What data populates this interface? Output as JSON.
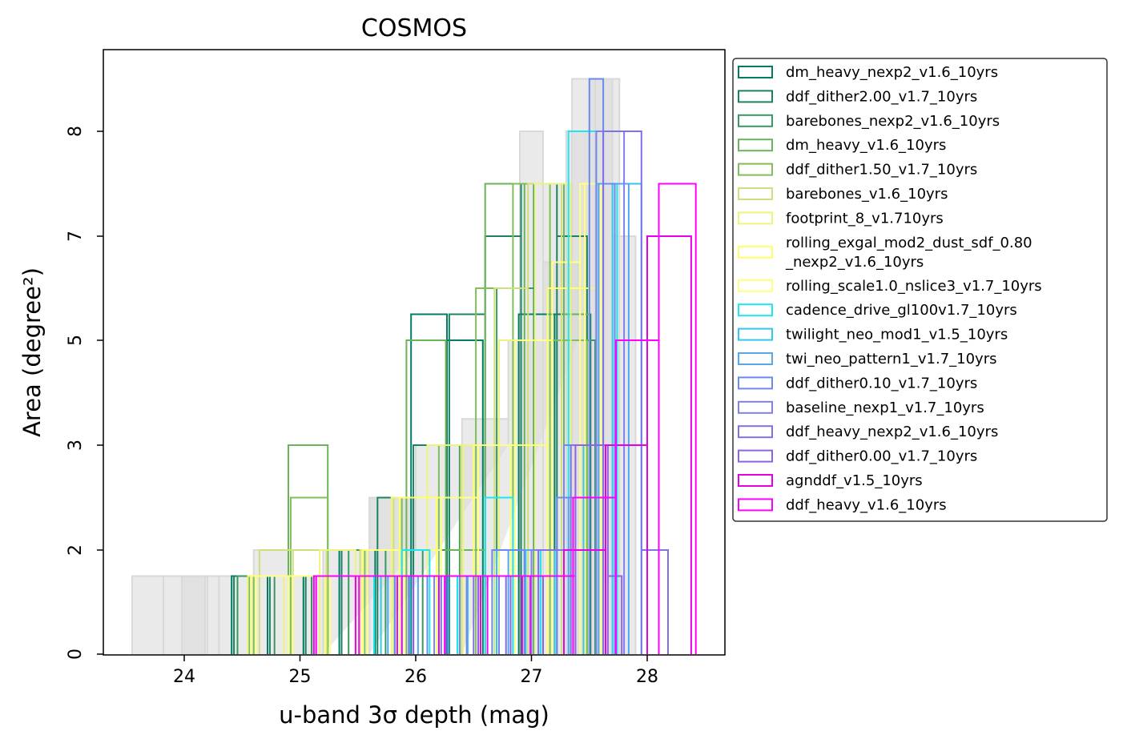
{
  "chart_data": {
    "type": "histogram",
    "title": "COSMOS",
    "xlabel": "u-band 3σ depth (mag)",
    "ylabel": "Area (degree²)",
    "xlim": [
      23.3,
      28.66
    ],
    "ylim": [
      0,
      8.8
    ],
    "x_ticks": [
      24,
      25,
      26,
      27,
      28
    ],
    "y_ticks": [
      0,
      2,
      3,
      5,
      7,
      8
    ],
    "grid": false,
    "legend_position": "outside-right",
    "background_series": {
      "color": "#d9d9d9",
      "steps": [
        {
          "edges": [
            23.55,
            23.82,
            24.18
          ],
          "values": [
            1.5,
            1.5
          ]
        },
        {
          "edges": [
            23.98,
            24.2,
            24.3
          ],
          "values": [
            1.5,
            1.5
          ]
        },
        {
          "edges": [
            24.3,
            24.6,
            24.9,
            25.2
          ],
          "values": [
            1.5,
            2.0,
            1.5
          ]
        },
        {
          "edges": [
            25.2,
            25.6,
            26.0
          ],
          "values": [
            2.0,
            2.5,
            2.0
          ]
        },
        {
          "edges": [
            25.6,
            26.0,
            26.4,
            26.8
          ],
          "values": [
            2.5,
            3.0,
            3.5,
            3.0
          ]
        },
        {
          "edges": [
            26.4,
            26.8,
            27.1,
            27.4
          ],
          "values": [
            3.0,
            5.0,
            6.5,
            5.0
          ]
        },
        {
          "edges": [
            26.9,
            27.1,
            27.3,
            27.5,
            27.7,
            27.9
          ],
          "values": [
            8.0,
            7.5,
            8.0,
            8.5,
            7.0
          ]
        },
        {
          "edges": [
            27.35,
            27.55,
            27.76
          ],
          "values": [
            8.5,
            8.5
          ]
        }
      ]
    },
    "series": [
      {
        "name": "dm_heavy_nexp2_v1.6_10yrs",
        "color": "#007d63",
        "edges": [
          24.41,
          24.72,
          25.03,
          25.34,
          25.65,
          25.96,
          26.27,
          26.58,
          26.89,
          27.2,
          27.51
        ],
        "values": [
          1.5,
          1.5,
          1.5,
          2.0,
          2.0,
          5.5,
          5.0,
          1.5,
          5.5,
          5.5
        ]
      },
      {
        "name": "ddf_dither2.00_v1.7_10yrs",
        "color": "#1a8263",
        "edges": [
          24.43,
          24.74,
          25.05,
          25.36,
          25.67,
          25.98,
          26.29,
          26.6,
          26.91,
          27.22,
          27.48
        ],
        "values": [
          1.5,
          1.5,
          1.5,
          2.0,
          2.5,
          3.0,
          5.5,
          7.0,
          7.5,
          7.0
        ]
      },
      {
        "name": "barebones_nexp2_v1.6_10yrs",
        "color": "#3a9963",
        "edges": [
          24.46,
          24.78,
          25.1,
          25.42,
          25.74,
          26.06,
          26.38,
          26.7,
          27.02,
          27.34,
          27.55
        ],
        "values": [
          1.5,
          1.5,
          1.5,
          2.0,
          1.5,
          2.0,
          3.0,
          6.0,
          7.5,
          5.0
        ]
      },
      {
        "name": "dm_heavy_v1.6_10yrs",
        "color": "#6ab55a",
        "edges": [
          24.56,
          24.9,
          25.24,
          25.58,
          25.92,
          26.26,
          26.6,
          26.94,
          27.28,
          27.5
        ],
        "values": [
          1.5,
          3.0,
          1.5,
          2.0,
          5.0,
          2.0,
          7.5,
          7.5,
          5.5
        ]
      },
      {
        "name": "ddf_dither1.50_v1.7_10yrs",
        "color": "#7fbf5a",
        "edges": [
          24.6,
          24.92,
          25.24,
          25.56,
          25.88,
          26.2,
          26.52,
          26.84,
          27.16,
          27.48
        ],
        "values": [
          1.5,
          2.5,
          1.5,
          2.0,
          2.5,
          3.0,
          6.0,
          7.5,
          5.0
        ]
      },
      {
        "name": "barebones_v1.6_10yrs",
        "color": "#cde07a",
        "edges": [
          24.65,
          24.94,
          25.23,
          25.52,
          25.81,
          26.1,
          26.39,
          26.68,
          26.97,
          27.26,
          27.5
        ],
        "values": [
          2.0,
          2.0,
          1.5,
          2.0,
          2.5,
          2.5,
          3.0,
          6.0,
          7.5,
          6.0
        ]
      },
      {
        "name": "footprint_8_v1.710yrs",
        "color": "#eef47a",
        "edges": [
          24.55,
          24.86,
          25.17,
          25.48,
          25.79,
          26.1,
          26.41,
          26.72,
          27.03,
          27.34,
          27.58
        ],
        "values": [
          1.5,
          1.5,
          2.0,
          1.5,
          2.5,
          3.0,
          3.0,
          5.0,
          7.5,
          6.0
        ]
      },
      {
        "name": "rolling_exgal_mod2_dust_sdf_0.80_nexp2_v1.6_10yrs",
        "color": "#ffff66",
        "edges": [
          24.58,
          24.9,
          25.22,
          25.54,
          25.86,
          26.18,
          26.5,
          26.82,
          27.14,
          27.46,
          27.62
        ],
        "values": [
          1.5,
          1.5,
          1.5,
          2.0,
          2.5,
          2.5,
          3.0,
          3.0,
          6.0,
          7.5
        ]
      },
      {
        "name": "rolling_scale1.0_nslice3_v1.7_10yrs",
        "color": "#ffff80",
        "edges": [
          24.62,
          24.94,
          25.26,
          25.58,
          25.9,
          26.22,
          26.54,
          26.86,
          27.18,
          27.42,
          27.6
        ],
        "values": [
          1.5,
          1.5,
          1.5,
          2.0,
          2.0,
          2.5,
          3.0,
          5.0,
          6.5,
          7.5
        ]
      },
      {
        "name": "cadence_drive_gl100v1.7_10yrs",
        "color": "#1ee6f0",
        "edges": [
          25.64,
          25.88,
          26.12,
          26.36,
          26.6,
          26.84,
          27.08,
          27.32,
          27.56,
          27.74
        ],
        "values": [
          1.5,
          2.0,
          1.5,
          1.5,
          2.5,
          1.5,
          2.0,
          8.0,
          7.5
        ]
      },
      {
        "name": "twilight_neo_mod1_v1.5_10yrs",
        "color": "#33c7f0",
        "edges": [
          25.7,
          25.95,
          26.2,
          26.45,
          26.7,
          26.95,
          27.2,
          27.45,
          27.7,
          27.95
        ],
        "values": [
          1.5,
          1.5,
          1.5,
          1.5,
          2.0,
          1.5,
          2.0,
          3.0,
          7.5
        ]
      },
      {
        "name": "twi_neo_pattern1_v1.7_10yrs",
        "color": "#52a8f0",
        "edges": [
          25.76,
          26.02,
          26.28,
          26.54,
          26.8,
          27.06,
          27.32,
          27.58,
          27.84
        ],
        "values": [
          1.5,
          1.5,
          1.5,
          1.5,
          2.0,
          2.0,
          2.5,
          7.5
        ]
      },
      {
        "name": "ddf_dither0.10_v1.7_10yrs",
        "color": "#6a8af0",
        "edges": [
          25.82,
          26.1,
          26.38,
          26.66,
          26.94,
          27.22,
          27.5,
          27.62,
          27.72
        ],
        "values": [
          1.5,
          1.5,
          1.5,
          2.0,
          1.5,
          2.5,
          8.5,
          7.5
        ]
      },
      {
        "name": "baseline_nexp1_v1.7_10yrs",
        "color": "#7f7ff0",
        "edges": [
          25.88,
          26.16,
          26.44,
          26.72,
          27.0,
          27.28,
          27.56,
          27.8
        ],
        "values": [
          1.5,
          1.5,
          1.5,
          1.5,
          2.0,
          3.0,
          8.0
        ]
      },
      {
        "name": "ddf_heavy_nexp2_v1.6_10yrs",
        "color": "#8070ea",
        "edges": [
          25.94,
          26.22,
          26.5,
          26.78,
          27.06,
          27.34,
          27.62,
          27.95,
          28.18
        ],
        "values": [
          1.5,
          1.5,
          1.5,
          1.5,
          2.0,
          3.0,
          8.0,
          2.0
        ]
      },
      {
        "name": "ddf_dither0.00_v1.7_10yrs",
        "color": "#9060e6",
        "edges": [
          25.98,
          26.26,
          26.54,
          26.82,
          27.1,
          27.38,
          27.66,
          27.78
        ],
        "values": [
          1.5,
          1.5,
          1.5,
          1.5,
          1.5,
          3.0,
          1.5
        ]
      },
      {
        "name": "agnddf_v1.5_10yrs",
        "color": "#e600e6",
        "edges": [
          25.12,
          25.48,
          25.84,
          26.2,
          26.56,
          26.92,
          27.28,
          27.64,
          28.0,
          28.38
        ],
        "values": [
          1.5,
          1.5,
          1.5,
          1.5,
          1.5,
          1.5,
          2.0,
          3.0,
          7.0
        ]
      },
      {
        "name": "ddf_heavy_v1.6_10yrs",
        "color": "#ff00ff",
        "edges": [
          25.14,
          25.51,
          25.88,
          26.25,
          26.62,
          26.99,
          27.36,
          27.73,
          28.1,
          28.42
        ],
        "values": [
          1.5,
          1.5,
          1.5,
          1.5,
          1.5,
          1.5,
          2.5,
          5.0,
          7.5
        ]
      }
    ]
  }
}
